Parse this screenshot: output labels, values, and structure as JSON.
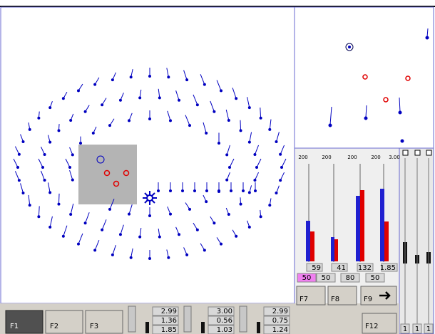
{
  "function_keys": {
    "f1": "F1",
    "f2": "F2",
    "f3": "F3",
    "f7": "F7",
    "f8": "F8",
    "f9": "F9",
    "f12": "F12"
  },
  "readouts": [
    [
      "2.99",
      "1.36",
      "1.85"
    ],
    [
      "3.00",
      "0.56",
      "1.03"
    ],
    [
      "2.99",
      "0.75",
      "1.24"
    ]
  ],
  "bar_panel": {
    "headers": [
      "200",
      "200",
      "200",
      "200",
      "3.00"
    ],
    "values": [
      "59",
      "41",
      "132",
      "1.85"
    ],
    "settings": [
      "50",
      "50",
      "80",
      "50"
    ]
  },
  "right_columns": {
    "labels": [
      "1",
      "1",
      "1"
    ]
  }
}
